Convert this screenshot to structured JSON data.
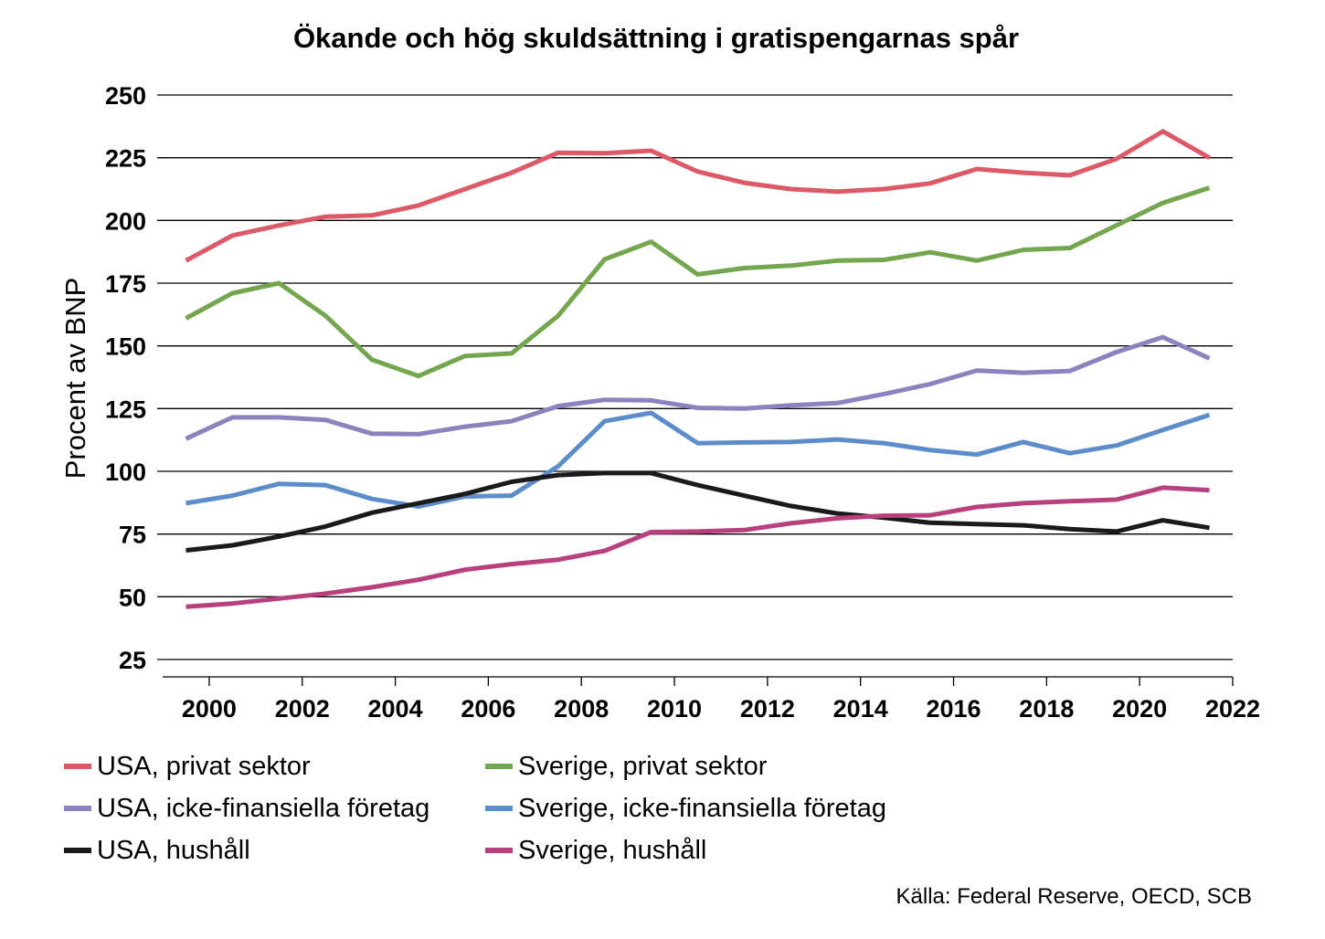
{
  "chart_data": {
    "type": "line",
    "title": "Ökande och hög skuldsättning i gratispengarnas spår",
    "ylabel": "Procent av BNP",
    "xlabel": "",
    "ylim": [
      25,
      250
    ],
    "yticks": [
      25,
      50,
      75,
      100,
      125,
      150,
      175,
      200,
      225,
      250
    ],
    "xlim": [
      1999,
      2022
    ],
    "xticks": [
      2000,
      2002,
      2004,
      2006,
      2008,
      2010,
      2012,
      2014,
      2016,
      2018,
      2020,
      2022
    ],
    "x": [
      1999.5,
      2000.5,
      2001.5,
      2002.5,
      2003.5,
      2004.5,
      2005.5,
      2006.5,
      2007.5,
      2008.5,
      2009.5,
      2010.5,
      2011.5,
      2012.5,
      2013.5,
      2014.5,
      2015.5,
      2016.5,
      2017.5,
      2018.5,
      2019.5,
      2020.5,
      2021.5
    ],
    "grid": "horizontal",
    "legend_position": "bottom",
    "series": [
      {
        "name": "USA, privat sektor",
        "color": "#dc5a67",
        "values": [
          184,
          194,
          198,
          201.5,
          202,
          206,
          212.5,
          219,
          227,
          226.8,
          227.8,
          219.5,
          215,
          212.5,
          211.5,
          212.5,
          214.8,
          220.5,
          219,
          218,
          224.5,
          235.5,
          225
        ]
      },
      {
        "name": "Sverige, privat sektor",
        "color": "#74a54f",
        "values": [
          161,
          171,
          175,
          162,
          144.5,
          138,
          146,
          147,
          162,
          184.5,
          191.5,
          178.5,
          181,
          182,
          184,
          184.3,
          187.3,
          184,
          188.3,
          189,
          198,
          207,
          213
        ]
      },
      {
        "name": "USA, icke-finansiella företag",
        "color": "#8b83bd",
        "values": [
          113,
          121.5,
          121.5,
          120.5,
          115,
          114.8,
          117.8,
          120,
          126,
          128.5,
          128.3,
          125.3,
          125,
          126.3,
          127.2,
          130.8,
          134.8,
          140.2,
          139.3,
          140,
          147.5,
          153.5,
          145
        ]
      },
      {
        "name": "Sverige, icke-finansiella företag",
        "color": "#5d8ccb",
        "values": [
          87.3,
          90.3,
          95,
          94.5,
          89,
          86,
          90,
          90.3,
          102,
          120,
          123.3,
          111.2,
          111.5,
          111.7,
          112.7,
          111.2,
          108.5,
          106.7,
          111.7,
          107.2,
          110.3,
          116.5,
          122.5
        ]
      },
      {
        "name": "USA, hushåll",
        "color": "#1a1a1a",
        "values": [
          68.5,
          70.5,
          74,
          78,
          83.5,
          87.3,
          91,
          95.8,
          98.5,
          99.3,
          99.3,
          94.5,
          90.3,
          86.2,
          83.2,
          81.5,
          79.5,
          79,
          78.5,
          77,
          76,
          80.5,
          77.5
        ]
      },
      {
        "name": "Sverige, hushåll",
        "color": "#b8407f",
        "values": [
          46,
          47.3,
          49.3,
          51.3,
          53.8,
          56.8,
          60.8,
          63,
          64.8,
          68.3,
          75.8,
          76,
          76.6,
          79.3,
          81.3,
          82.3,
          82.5,
          85.8,
          87.3,
          88.1,
          88.7,
          93.5,
          92.5
        ]
      }
    ],
    "source": "Källa: Federal Reserve, OECD, SCB"
  }
}
